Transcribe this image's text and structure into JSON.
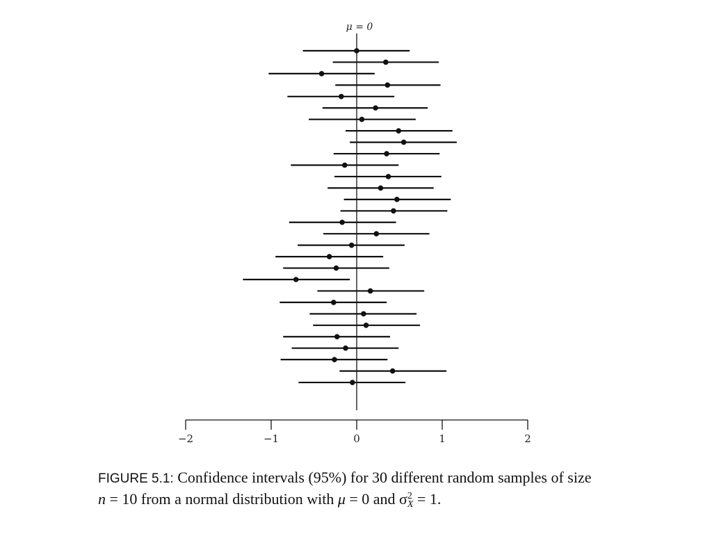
{
  "chart_data": {
    "type": "interval",
    "reference_label": "μ = 0",
    "reference_value": 0,
    "xlim": [
      -2,
      2
    ],
    "xticks": [
      -2,
      -1,
      0,
      1,
      2
    ],
    "xtick_labels": [
      "−2",
      "−1",
      "0",
      "1",
      "2"
    ],
    "intervals": [
      {
        "mean": 0.0,
        "lower": -0.63,
        "upper": 0.62
      },
      {
        "mean": 0.34,
        "lower": -0.28,
        "upper": 0.96
      },
      {
        "mean": -0.41,
        "lower": -1.03,
        "upper": 0.21
      },
      {
        "mean": 0.36,
        "lower": -0.25,
        "upper": 0.98
      },
      {
        "mean": -0.18,
        "lower": -0.81,
        "upper": 0.44
      },
      {
        "mean": 0.22,
        "lower": -0.4,
        "upper": 0.83
      },
      {
        "mean": 0.06,
        "lower": -0.56,
        "upper": 0.69
      },
      {
        "mean": 0.49,
        "lower": -0.13,
        "upper": 1.12
      },
      {
        "mean": 0.55,
        "lower": -0.08,
        "upper": 1.17
      },
      {
        "mean": 0.35,
        "lower": -0.27,
        "upper": 0.97
      },
      {
        "mean": -0.14,
        "lower": -0.77,
        "upper": 0.49
      },
      {
        "mean": 0.37,
        "lower": -0.26,
        "upper": 0.99
      },
      {
        "mean": 0.28,
        "lower": -0.34,
        "upper": 0.9
      },
      {
        "mean": 0.47,
        "lower": -0.15,
        "upper": 1.1
      },
      {
        "mean": 0.43,
        "lower": -0.19,
        "upper": 1.06
      },
      {
        "mean": -0.17,
        "lower": -0.79,
        "upper": 0.46
      },
      {
        "mean": 0.23,
        "lower": -0.39,
        "upper": 0.85
      },
      {
        "mean": -0.06,
        "lower": -0.69,
        "upper": 0.56
      },
      {
        "mean": -0.32,
        "lower": -0.95,
        "upper": 0.31
      },
      {
        "mean": -0.24,
        "lower": -0.86,
        "upper": 0.38
      },
      {
        "mean": -0.71,
        "lower": -1.33,
        "upper": -0.08
      },
      {
        "mean": 0.16,
        "lower": -0.46,
        "upper": 0.79
      },
      {
        "mean": -0.27,
        "lower": -0.9,
        "upper": 0.35
      },
      {
        "mean": 0.08,
        "lower": -0.55,
        "upper": 0.7
      },
      {
        "mean": 0.11,
        "lower": -0.51,
        "upper": 0.74
      },
      {
        "mean": -0.23,
        "lower": -0.86,
        "upper": 0.39
      },
      {
        "mean": -0.13,
        "lower": -0.76,
        "upper": 0.49
      },
      {
        "mean": -0.26,
        "lower": -0.89,
        "upper": 0.36
      },
      {
        "mean": 0.42,
        "lower": -0.2,
        "upper": 1.05
      },
      {
        "mean": -0.05,
        "lower": -0.68,
        "upper": 0.57
      }
    ]
  },
  "caption": {
    "label": "FIGURE 5.1:",
    "line1": " Confidence intervals (95%) for 30 different random samples of size",
    "line2_a": "n",
    "line2_b": " = 10 from a normal distribution with ",
    "line2_c": "μ",
    "line2_d": " = 0 and σ",
    "line2_e": " = 1."
  },
  "colors": {
    "ink": "#111111",
    "background": "#ffffff"
  }
}
